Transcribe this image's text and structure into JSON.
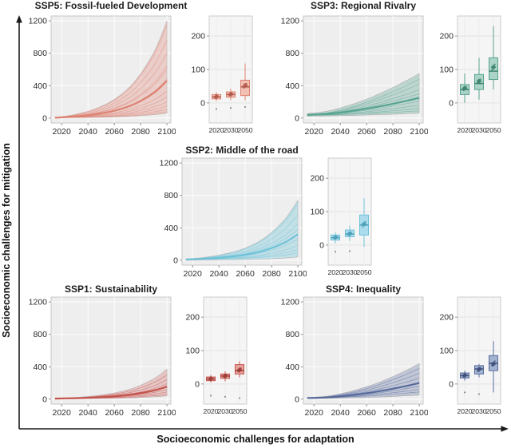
{
  "axes": {
    "y_label": "Socioeconomic challenges for mitigation",
    "x_label": "Socioeconomic challenges for adaptation"
  },
  "chart_data": [
    {
      "id": "ssp5",
      "title": "SSP5: Fossil-fueled Development",
      "colors": {
        "line": "#dd8272",
        "dark": "#b05a4b",
        "box_fill": "#f2c0b2",
        "band_opacity": 0.3
      },
      "fan": {
        "type": "area+line",
        "x": [
          2015,
          2030,
          2045,
          2060,
          2075,
          2090,
          2100
        ],
        "xticks": [
          2020,
          2040,
          2060,
          2080,
          2100
        ],
        "yticks": [
          0,
          400,
          800,
          1200
        ],
        "xlim": [
          2012,
          2103
        ],
        "ylim": [
          -60,
          1260
        ],
        "main": [
          5,
          20,
          46,
          91,
          171,
          311,
          460
        ],
        "band_upper": [
          5,
          43,
          111,
          230,
          441,
          809,
          1200
        ],
        "band_lower": [
          5,
          7,
          10,
          15,
          25,
          42,
          60
        ],
        "runs": [
          [
            5,
            42,
            107,
            220,
            423,
            776,
            1150
          ],
          [
            5,
            36,
            90,
            185,
            354,
            648,
            960
          ],
          [
            5,
            30,
            76,
            154,
            295,
            540,
            800
          ],
          [
            5,
            25,
            62,
            124,
            237,
            432,
            640
          ],
          [
            5,
            24,
            58,
            117,
            222,
            405,
            600
          ],
          [
            5,
            20,
            47,
            94,
            178,
            325,
            480
          ],
          [
            5,
            15,
            34,
            66,
            124,
            224,
            330
          ],
          [
            5,
            13,
            28,
            53,
            98,
            177,
            260
          ],
          [
            5,
            11,
            22,
            42,
            76,
            136,
            200
          ],
          [
            5,
            10,
            18,
            32,
            58,
            103,
            150
          ],
          [
            5,
            8,
            14,
            25,
            43,
            76,
            110
          ],
          [
            5,
            7,
            12,
            19,
            32,
            55,
            80
          ]
        ]
      },
      "box": {
        "type": "box",
        "categories": [
          "2020",
          "2030",
          "2050"
        ],
        "yticks": [
          0,
          100,
          200
        ],
        "ylim": [
          -60,
          260
        ],
        "boxes": [
          {
            "low": 5,
            "q1": 12,
            "med": 18,
            "q3": 25,
            "high": 32,
            "mean": 19,
            "points": [
              15,
              21
            ],
            "outliers": [
              -18
            ]
          },
          {
            "low": 8,
            "q1": 17,
            "med": 25,
            "q3": 33,
            "high": 42,
            "mean": 26,
            "points": [
              22,
              29
            ],
            "outliers": [
              -15
            ]
          },
          {
            "low": 8,
            "q1": 22,
            "med": 48,
            "q3": 68,
            "high": 118,
            "mean": 52,
            "points": [
              45,
              57
            ],
            "outliers": [
              -12
            ]
          }
        ]
      }
    },
    {
      "id": "ssp3",
      "title": "SSP3: Regional Rivalry",
      "colors": {
        "line": "#56a390",
        "dark": "#3c8270",
        "box_fill": "#abd4c6",
        "band_opacity": 0.32
      },
      "fan": {
        "type": "area+line",
        "x": [
          2015,
          2030,
          2045,
          2060,
          2075,
          2090,
          2100
        ],
        "xticks": [
          2020,
          2040,
          2060,
          2080,
          2100
        ],
        "yticks": [
          0,
          400,
          800,
          1200
        ],
        "xlim": [
          2012,
          2103
        ],
        "ylim": [
          -60,
          1260
        ],
        "main": [
          40,
          53,
          80,
          116,
          160,
          212,
          250
        ],
        "band_upper": [
          55,
          86,
          149,
          234,
          339,
          460,
          550
        ],
        "band_lower": [
          25,
          27,
          32,
          38,
          45,
          54,
          60
        ],
        "runs": [
          [
            35,
            63,
            119,
            196,
            290,
            399,
            480
          ],
          [
            35,
            59,
            108,
            174,
            256,
            350,
            420
          ],
          [
            35,
            55,
            95,
            149,
            216,
            293,
            350
          ],
          [
            35,
            51,
            85,
            131,
            187,
            252,
            300
          ],
          [
            35,
            46,
            68,
            98,
            135,
            178,
            210
          ],
          [
            35,
            43,
            59,
            80,
            107,
            137,
            160
          ],
          [
            35,
            40,
            51,
            66,
            84,
            105,
            120
          ],
          [
            35,
            38,
            45,
            55,
            67,
            80,
            90
          ]
        ]
      },
      "box": {
        "type": "box",
        "categories": [
          "2020",
          "2030",
          "2050"
        ],
        "yticks": [
          0,
          100,
          200
        ],
        "ylim": [
          -60,
          260
        ],
        "boxes": [
          {
            "low": 0,
            "q1": 25,
            "med": 40,
            "q3": 55,
            "high": 88,
            "mean": 44,
            "points": [
              38,
              48
            ],
            "outliers": []
          },
          {
            "low": 10,
            "q1": 40,
            "med": 58,
            "q3": 85,
            "high": 135,
            "mean": 65,
            "points": [
              60,
              70
            ],
            "outliers": []
          },
          {
            "low": 40,
            "q1": 70,
            "med": 95,
            "q3": 135,
            "high": 230,
            "mean": 107,
            "points": [
              100,
              115
            ],
            "outliers": []
          }
        ]
      }
    },
    {
      "id": "ssp2",
      "title": "SSP2: Middle of the road",
      "colors": {
        "line": "#6fc2d8",
        "dark": "#4b9fb8",
        "box_fill": "#aadced",
        "band_opacity": 0.35
      },
      "fan": {
        "type": "area+line",
        "x": [
          2015,
          2030,
          2045,
          2060,
          2075,
          2090,
          2100
        ],
        "xticks": [
          2020,
          2040,
          2060,
          2080,
          2100
        ],
        "yticks": [
          0,
          400,
          800,
          1200
        ],
        "xlim": [
          2012,
          2103
        ],
        "ylim": [
          -60,
          1260
        ],
        "main": [
          10,
          20,
          38,
          68,
          123,
          219,
          320
        ],
        "band_upper": [
          15,
          38,
          80,
          151,
          280,
          503,
          740
        ],
        "band_lower": [
          0,
          1,
          4,
          8,
          15,
          27,
          40
        ],
        "runs": [
          [
            10,
            32,
            71,
            140,
            262,
            474,
            700
          ],
          [
            10,
            28,
            59,
            113,
            211,
            383,
            560
          ],
          [
            10,
            24,
            49,
            93,
            171,
            306,
            450
          ],
          [
            10,
            22,
            43,
            80,
            145,
            262,
            380
          ],
          [
            10,
            18,
            32,
            57,
            101,
            178,
            260
          ],
          [
            10,
            15,
            25,
            42,
            72,
            125,
            180
          ],
          [
            10,
            14,
            21,
            33,
            54,
            91,
            130
          ],
          [
            10,
            13,
            17,
            25,
            39,
            64,
            90
          ]
        ]
      },
      "box": {
        "type": "box",
        "categories": [
          "2020",
          "2030",
          "2050"
        ],
        "yticks": [
          0,
          100,
          200
        ],
        "ylim": [
          -60,
          260
        ],
        "boxes": [
          {
            "low": 5,
            "q1": 15,
            "med": 22,
            "q3": 30,
            "high": 38,
            "mean": 23,
            "points": [
              20,
              26
            ],
            "outliers": [
              -20
            ]
          },
          {
            "low": 12,
            "q1": 25,
            "med": 33,
            "q3": 45,
            "high": 58,
            "mean": 34,
            "points": [
              30,
              38
            ],
            "outliers": [
              -18
            ]
          },
          {
            "low": -5,
            "q1": 30,
            "med": 60,
            "q3": 90,
            "high": 140,
            "mean": 63,
            "points": [
              55,
              70
            ],
            "outliers": []
          }
        ]
      }
    },
    {
      "id": "ssp1",
      "title": "SSP1: Sustainability",
      "colors": {
        "line": "#c4534d",
        "dark": "#9e3d39",
        "box_fill": "#e7a49d",
        "band_opacity": 0.26
      },
      "fan": {
        "type": "area+line",
        "x": [
          2015,
          2030,
          2045,
          2060,
          2075,
          2090,
          2100
        ],
        "xticks": [
          2020,
          2040,
          2060,
          2080,
          2100
        ],
        "yticks": [
          0,
          400,
          800,
          1200
        ],
        "xlim": [
          2012,
          2103
        ],
        "ylim": [
          -60,
          1260
        ],
        "main": [
          8,
          13,
          21,
          36,
          62,
          107,
          155
        ],
        "band_upper": [
          10,
          22,
          42,
          78,
          141,
          252,
          370
        ],
        "band_lower": [
          5,
          6,
          8,
          12,
          18,
          29,
          40
        ],
        "runs": [
          [
            8,
            17,
            34,
            63,
            115,
            204,
            300
          ],
          [
            8,
            15,
            29,
            52,
            93,
            164,
            240
          ],
          [
            8,
            14,
            24,
            42,
            74,
            130,
            190
          ],
          [
            8,
            12,
            18,
            29,
            49,
            83,
            120
          ],
          [
            8,
            11,
            15,
            23,
            38,
            63,
            90
          ],
          [
            8,
            10,
            13,
            18,
            27,
            43,
            60
          ]
        ]
      },
      "box": {
        "type": "box",
        "categories": [
          "2020",
          "2030",
          "2050"
        ],
        "yticks": [
          0,
          100,
          200
        ],
        "ylim": [
          -60,
          260
        ],
        "boxes": [
          {
            "low": 5,
            "q1": 10,
            "med": 15,
            "q3": 21,
            "high": 27,
            "mean": 16,
            "points": [
              13,
              18
            ],
            "outliers": [
              -35
            ]
          },
          {
            "low": 8,
            "q1": 17,
            "med": 24,
            "q3": 30,
            "high": 38,
            "mean": 24,
            "points": [
              21,
              27
            ],
            "outliers": [
              -38
            ]
          },
          {
            "low": 20,
            "q1": 30,
            "med": 40,
            "q3": 58,
            "high": 68,
            "mean": 42,
            "points": [
              37,
              47
            ],
            "outliers": [
              -42
            ]
          }
        ]
      }
    },
    {
      "id": "ssp4",
      "title": "SSP4: Inequality",
      "colors": {
        "line": "#566a9c",
        "dark": "#404f78",
        "box_fill": "#a3b2d1",
        "band_opacity": 0.3
      },
      "fan": {
        "type": "area+line",
        "x": [
          2015,
          2030,
          2045,
          2060,
          2075,
          2090,
          2100
        ],
        "xticks": [
          2020,
          2040,
          2060,
          2080,
          2100
        ],
        "yticks": [
          0,
          400,
          800,
          1200
        ],
        "xlim": [
          2012,
          2103
        ],
        "ylim": [
          -60,
          1260
        ],
        "main": [
          15,
          23,
          43,
          74,
          114,
          163,
          200
        ],
        "band_upper": [
          20,
          38,
          85,
          154,
          244,
          355,
          440
        ],
        "band_lower": [
          8,
          10,
          14,
          21,
          30,
          42,
          50
        ],
        "runs": [
          [
            15,
            31,
            71,
            131,
            210,
            306,
            380
          ],
          [
            15,
            28,
            62,
            112,
            178,
            258,
            320
          ],
          [
            15,
            26,
            53,
            93,
            146,
            211,
            260
          ],
          [
            15,
            21,
            37,
            61,
            92,
            131,
            160
          ],
          [
            15,
            20,
            31,
            48,
            71,
            99,
            120
          ],
          [
            15,
            18,
            27,
            39,
            55,
            75,
            90
          ]
        ]
      },
      "box": {
        "type": "box",
        "categories": [
          "2020",
          "2030",
          "2050"
        ],
        "yticks": [
          0,
          100,
          200
        ],
        "ylim": [
          -60,
          260
        ],
        "boxes": [
          {
            "low": 10,
            "q1": 18,
            "med": 25,
            "q3": 33,
            "high": 40,
            "mean": 26,
            "points": [
              22,
              28
            ],
            "outliers": [
              -25
            ]
          },
          {
            "low": 20,
            "q1": 30,
            "med": 45,
            "q3": 55,
            "high": 60,
            "mean": 44,
            "points": [
              38,
              48
            ],
            "outliers": [
              -30
            ]
          },
          {
            "low": -25,
            "q1": 40,
            "med": 62,
            "q3": 85,
            "high": 128,
            "mean": 60,
            "points": [
              55,
              68
            ],
            "outliers": []
          }
        ]
      }
    }
  ]
}
